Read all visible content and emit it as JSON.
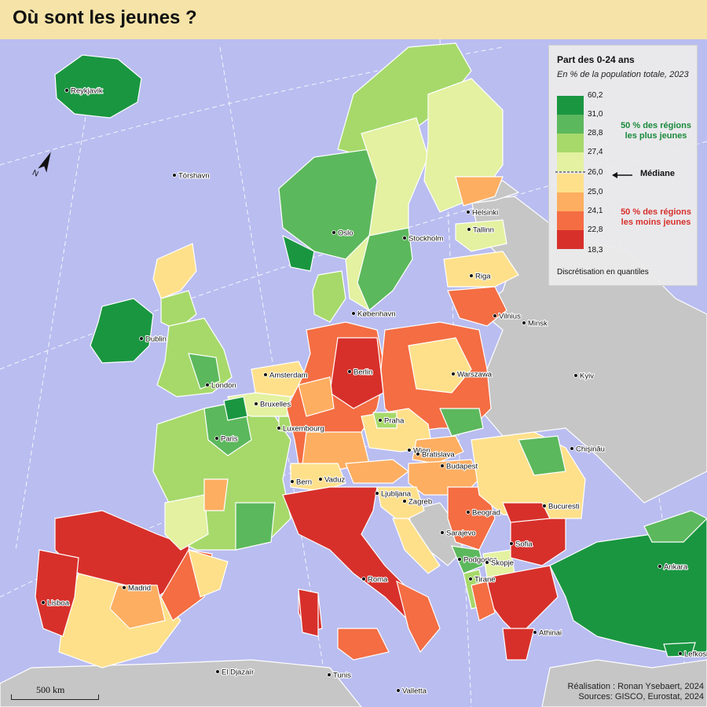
{
  "title": "Où sont les jeunes ?",
  "legend": {
    "title": "Part des 0-24 ans",
    "subtitle": "En % de la population totale, 2023",
    "classes": [
      {
        "color": "#1a9641"
      },
      {
        "color": "#5cb85c"
      },
      {
        "color": "#a6d96a"
      },
      {
        "color": "#e3f1a0"
      },
      {
        "color": "#fee08b"
      },
      {
        "color": "#fdae61"
      },
      {
        "color": "#f46d43"
      },
      {
        "color": "#d7302b"
      }
    ],
    "ticks": [
      "60,2",
      "31,0",
      "28,8",
      "27,4",
      "26,0",
      "25,0",
      "24,1",
      "22,8",
      "18,3"
    ],
    "median_label": "Médiane",
    "top_group_label": "50 % des régions les plus jeunes",
    "top_group_color": "#1a8a3a",
    "bottom_group_label": "50 % des régions les moins jeunes",
    "bottom_group_color": "#d7302b",
    "note": "Discrétisation en quantiles"
  },
  "cities": [
    {
      "name": "Reykjavik"
    },
    {
      "name": "Tórshavn"
    },
    {
      "name": "Oslo"
    },
    {
      "name": "Stockholm"
    },
    {
      "name": "Helsinki"
    },
    {
      "name": "Tallinn"
    },
    {
      "name": "Riga"
    },
    {
      "name": "Vilnius"
    },
    {
      "name": "Minsk"
    },
    {
      "name": "Kyiv"
    },
    {
      "name": "Dublin"
    },
    {
      "name": "London"
    },
    {
      "name": "København"
    },
    {
      "name": "Amsterdam"
    },
    {
      "name": "Bruxelles"
    },
    {
      "name": "Luxembourg"
    },
    {
      "name": "Berlin"
    },
    {
      "name": "Warszawa"
    },
    {
      "name": "Praha"
    },
    {
      "name": "Paris"
    },
    {
      "name": "Wien"
    },
    {
      "name": "Bratislava"
    },
    {
      "name": "Budapest"
    },
    {
      "name": "Chişinău"
    },
    {
      "name": "Bern"
    },
    {
      "name": "Vaduz"
    },
    {
      "name": "Ljubljana"
    },
    {
      "name": "Zagreb"
    },
    {
      "name": "Bucuresti"
    },
    {
      "name": "Beograd"
    },
    {
      "name": "Sarajevo"
    },
    {
      "name": "Podgorica"
    },
    {
      "name": "Skopje"
    },
    {
      "name": "Sofia"
    },
    {
      "name": "Tirane"
    },
    {
      "name": "Madrid"
    },
    {
      "name": "Lisboa"
    },
    {
      "name": "Roma"
    },
    {
      "name": "Athinai"
    },
    {
      "name": "Ankara"
    },
    {
      "name": "Lefkosia"
    },
    {
      "name": "El Djazaïr"
    },
    {
      "name": "Tunis"
    },
    {
      "name": "Valletta"
    }
  ],
  "scale_label": "500 km",
  "credits": {
    "line1": "Réalisation : Ronan Ysebaert, 2024",
    "line2": "Sources: GISCO, Eurostat, 2024"
  }
}
